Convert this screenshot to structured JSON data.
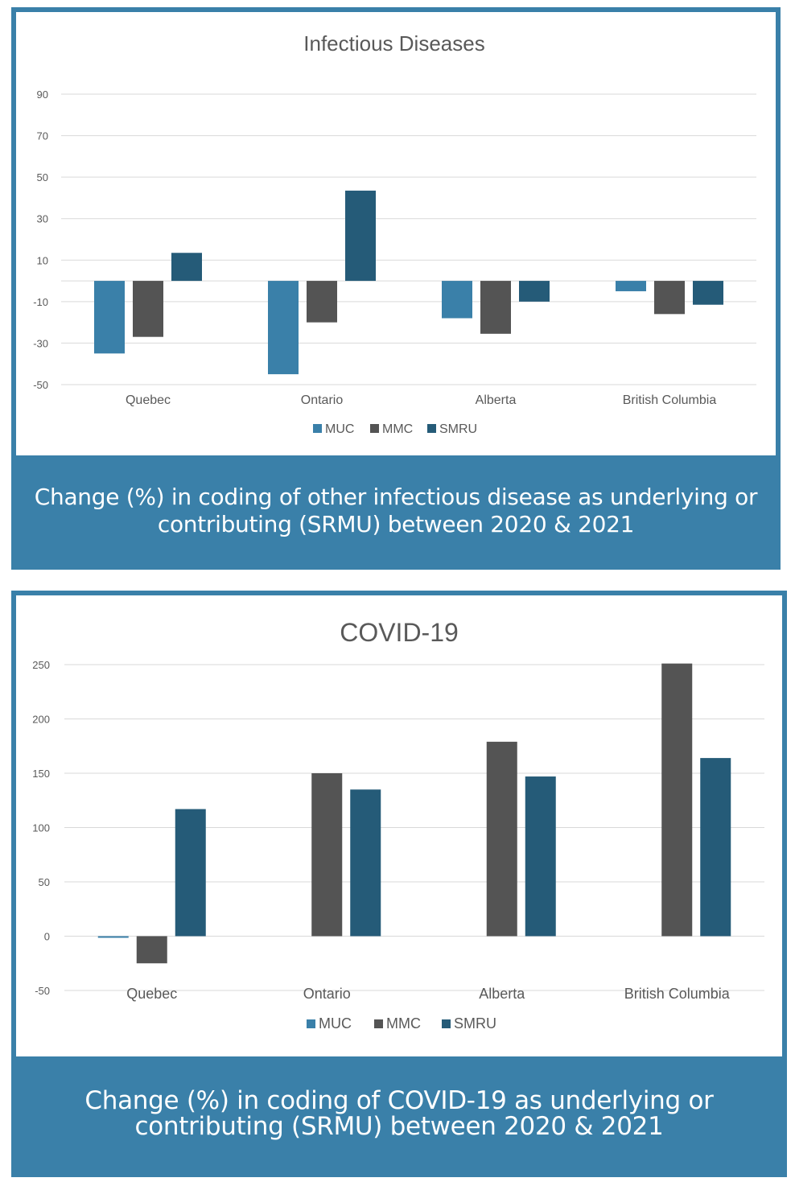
{
  "colors": {
    "panel": "#3a80a9",
    "MUC": "#3a80a9",
    "MMC": "#545454",
    "SMRU": "#255b78",
    "grid": "#d9d9d9",
    "text": "#595959"
  },
  "chart_data": [
    {
      "type": "bar",
      "title": "Infectious Diseases",
      "caption": "Change (%) in coding of other infectious disease as underlying or contributing (SRMU)  between 2020 & 2021",
      "categories": [
        "Quebec",
        "Ontario",
        "Alberta",
        "British Columbia"
      ],
      "series": [
        {
          "name": "MUC",
          "values": [
            -35,
            -45,
            -18,
            -5
          ]
        },
        {
          "name": "MMC",
          "values": [
            -27,
            -20,
            -25.5,
            -16
          ]
        },
        {
          "name": "SMRU",
          "values": [
            13.5,
            43.5,
            -10,
            -11.5
          ]
        }
      ],
      "yticks": [
        90,
        70,
        50,
        30,
        10,
        -10,
        -30,
        -50
      ],
      "ylim": [
        -50,
        90
      ],
      "xlabel": "",
      "ylabel": "",
      "grid": true,
      "legend": "bottom"
    },
    {
      "type": "bar",
      "title": "COVID-19",
      "caption": "Change (%) in coding of COVID-19 as underlying or contributing (SRMU) between 2020 & 2021",
      "categories": [
        "Quebec",
        "Ontario",
        "Alberta",
        "British Columbia"
      ],
      "series": [
        {
          "name": "MUC",
          "values": [
            -1.5,
            0,
            0,
            0
          ]
        },
        {
          "name": "MMC",
          "values": [
            -25,
            150,
            179,
            251
          ]
        },
        {
          "name": "SMRU",
          "values": [
            117,
            135,
            147,
            164
          ]
        }
      ],
      "yticks": [
        250,
        200,
        150,
        100,
        50,
        0,
        -50
      ],
      "ylim": [
        -50,
        250
      ],
      "xlabel": "",
      "ylabel": "",
      "grid": true,
      "legend": "bottom"
    }
  ]
}
